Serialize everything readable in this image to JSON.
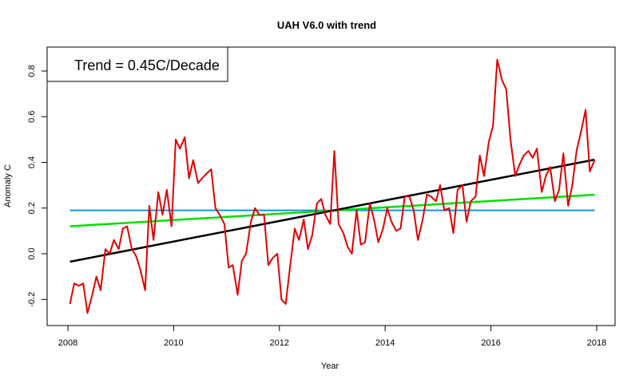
{
  "chart_data": {
    "type": "line",
    "title": "UAH V6.0 with trend",
    "xlabel": "Year",
    "ylabel": "Anomaly C",
    "xlim": [
      2007.85,
      2018.1
    ],
    "ylim": [
      -0.3,
      0.9
    ],
    "xticks": [
      2008,
      2010,
      2012,
      2014,
      2016,
      2018
    ],
    "yticks": [
      -0.2,
      0.0,
      0.2,
      0.4,
      0.6,
      0.8
    ],
    "annotation": "Trend = 0.45C/Decade",
    "grid": false,
    "series": [
      {
        "color": "#e00000",
        "x": [
          2008.04,
          2008.12,
          2008.21,
          2008.29,
          2008.37,
          2008.46,
          2008.54,
          2008.62,
          2008.71,
          2008.79,
          2008.87,
          2008.96,
          2009.04,
          2009.12,
          2009.21,
          2009.29,
          2009.37,
          2009.46,
          2009.54,
          2009.62,
          2009.71,
          2009.79,
          2009.87,
          2009.96,
          2010.04,
          2010.12,
          2010.21,
          2010.29,
          2010.37,
          2010.46,
          2010.54,
          2010.62,
          2010.71,
          2010.79,
          2010.87,
          2010.96,
          2011.04,
          2011.12,
          2011.21,
          2011.29,
          2011.37,
          2011.46,
          2011.54,
          2011.62,
          2011.71,
          2011.79,
          2011.87,
          2011.96,
          2012.04,
          2012.12,
          2012.21,
          2012.29,
          2012.37,
          2012.46,
          2012.54,
          2012.62,
          2012.71,
          2012.79,
          2012.87,
          2012.96,
          2013.04,
          2013.12,
          2013.21,
          2013.29,
          2013.37,
          2013.46,
          2013.54,
          2013.62,
          2013.71,
          2013.79,
          2013.87,
          2013.96,
          2014.04,
          2014.12,
          2014.21,
          2014.29,
          2014.37,
          2014.46,
          2014.54,
          2014.62,
          2014.71,
          2014.79,
          2014.87,
          2014.96,
          2015.04,
          2015.12,
          2015.21,
          2015.29,
          2015.37,
          2015.46,
          2015.54,
          2015.62,
          2015.71,
          2015.79,
          2015.87,
          2015.96,
          2016.04,
          2016.12,
          2016.21,
          2016.29,
          2016.37,
          2016.46,
          2016.54,
          2016.62,
          2016.71,
          2016.79,
          2016.87,
          2016.96,
          2017.04,
          2017.12,
          2017.21,
          2017.29,
          2017.37,
          2017.46,
          2017.54,
          2017.62,
          2017.71,
          2017.79,
          2017.87,
          2017.96
        ],
        "values": [
          -0.22,
          -0.13,
          -0.14,
          -0.13,
          -0.26,
          -0.18,
          -0.1,
          -0.16,
          0.02,
          0.0,
          0.06,
          0.02,
          0.11,
          0.12,
          0.02,
          -0.01,
          -0.07,
          -0.16,
          0.21,
          0.06,
          0.27,
          0.17,
          0.28,
          0.12,
          0.5,
          0.46,
          0.51,
          0.33,
          0.41,
          0.31,
          0.33,
          0.35,
          0.37,
          0.2,
          0.17,
          0.13,
          -0.06,
          -0.05,
          -0.18,
          -0.03,
          0.0,
          0.14,
          0.2,
          0.17,
          0.17,
          -0.05,
          -0.02,
          0.0,
          -0.2,
          -0.22,
          -0.04,
          0.11,
          0.06,
          0.15,
          0.02,
          0.08,
          0.22,
          0.24,
          0.17,
          0.13,
          0.45,
          0.13,
          0.09,
          0.03,
          0.0,
          0.19,
          0.04,
          0.05,
          0.22,
          0.15,
          0.05,
          0.11,
          0.2,
          0.14,
          0.1,
          0.11,
          0.25,
          0.25,
          0.19,
          0.06,
          0.15,
          0.26,
          0.25,
          0.23,
          0.3,
          0.19,
          0.2,
          0.09,
          0.28,
          0.3,
          0.14,
          0.23,
          0.25,
          0.43,
          0.34,
          0.49,
          0.56,
          0.85,
          0.76,
          0.72,
          0.5,
          0.34,
          0.39,
          0.43,
          0.45,
          0.42,
          0.46,
          0.27,
          0.34,
          0.38,
          0.23,
          0.28,
          0.44,
          0.21,
          0.3,
          0.45,
          0.54,
          0.63,
          0.36,
          0.41
        ]
      },
      {
        "color": "#000000",
        "x": [
          2008.04,
          2017.96
        ],
        "values": [
          -0.035,
          0.412
        ]
      },
      {
        "color": "#00e000",
        "x": [
          2008.04,
          2017.96
        ],
        "values": [
          0.12,
          0.258
        ]
      },
      {
        "color": "#0a96e6",
        "x": [
          2008.04,
          2017.96
        ],
        "values": [
          0.19,
          0.19
        ]
      }
    ]
  }
}
